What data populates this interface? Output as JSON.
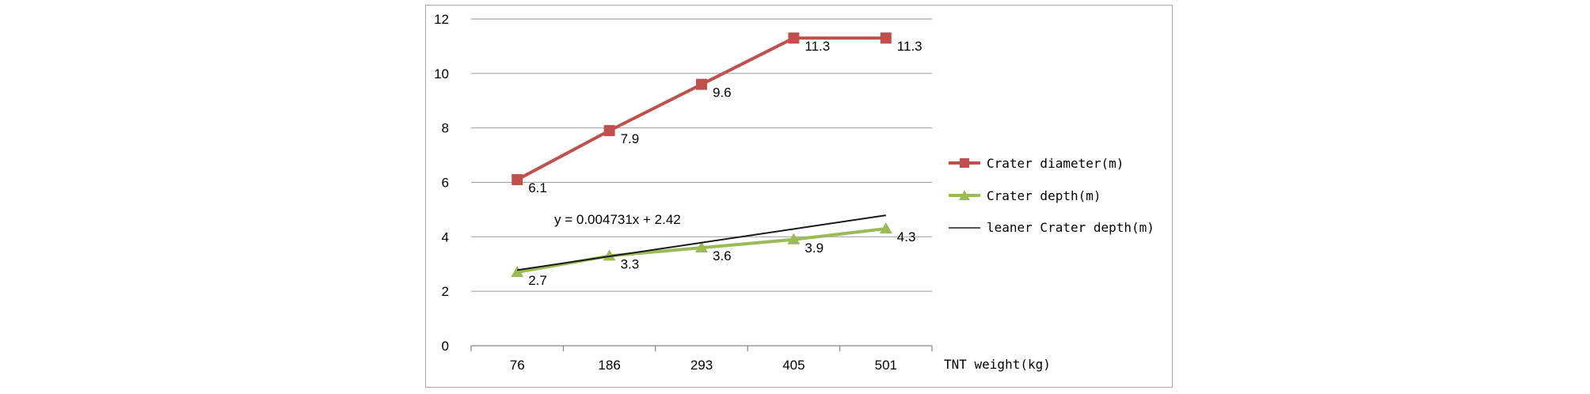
{
  "chart_data": {
    "type": "line",
    "categories": [
      "76",
      "186",
      "293",
      "405",
      "501"
    ],
    "x_values": [
      76,
      186,
      293,
      405,
      501
    ],
    "xlabel": "TNT weight(kg)",
    "ylabel": "",
    "ylim": [
      0,
      12
    ],
    "yticks": [
      0,
      2,
      4,
      6,
      8,
      10,
      12
    ],
    "grid": true,
    "legend_position": "right",
    "series": [
      {
        "name": "Crater diameter(m)",
        "values": [
          6.1,
          7.9,
          9.6,
          11.3,
          11.3
        ],
        "labels": [
          "6.1",
          "7.9",
          "9.6",
          "11.3",
          "11.3"
        ],
        "color": "#c0504d",
        "marker": "square"
      },
      {
        "name": "Crater depth(m)",
        "values": [
          2.7,
          3.3,
          3.6,
          3.9,
          4.3
        ],
        "labels": [
          "2.7",
          "3.3",
          "3.6",
          "3.9",
          "4.3"
        ],
        "color": "#9bbb59",
        "marker": "triangle"
      }
    ],
    "trendline": {
      "name": "leaner Crater depth(m)",
      "slope": 0.004731,
      "intercept": 2.42,
      "equation": "y = 0.004731x + 2.42",
      "color": "#1a1a1a"
    }
  }
}
